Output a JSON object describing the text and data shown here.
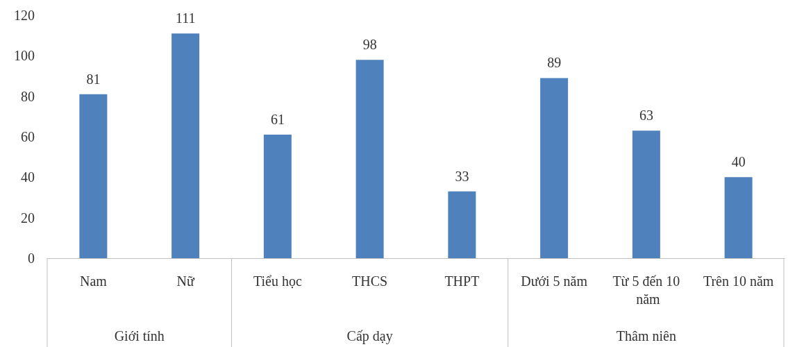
{
  "chart_data": {
    "type": "bar",
    "categories": [
      "Nam",
      "Nữ",
      "Tiểu học",
      "THCS",
      "THPT",
      "Dưới 5 năm",
      "Từ 5 đến 10 năm",
      "Trên 10 năm"
    ],
    "values": [
      81,
      111,
      61,
      98,
      33,
      89,
      63,
      40
    ],
    "color": "#4f81bd",
    "ylim": [
      0,
      120
    ],
    "yticks": [
      0,
      20,
      40,
      60,
      80,
      100,
      120
    ],
    "grid": false,
    "data_labels": true,
    "annotations": [
      "Giới tính",
      "Cấp dạy",
      "Thâm niên"
    ]
  }
}
